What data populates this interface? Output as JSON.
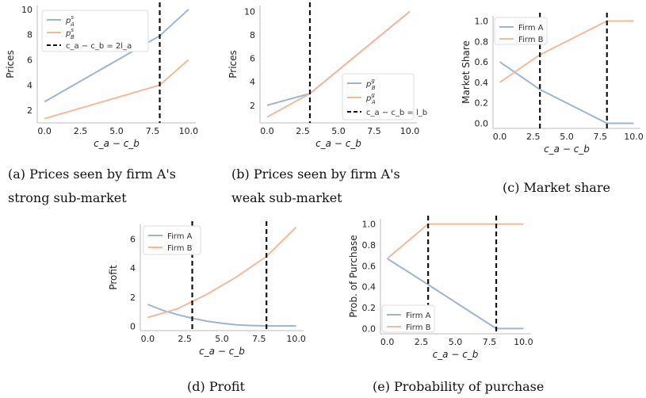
{
  "colors": {
    "firm_a": "#9db4d3",
    "firm_b": "#f2b99b",
    "threshold": "#111111"
  },
  "captions": {
    "a_line1": "(a) Prices seen by firm A's",
    "a_line2": "strong sub-market",
    "b_line1": "(b) Prices seen by firm A's",
    "b_line2": "weak sub-market",
    "c": "(c) Market share",
    "d": "(d) Profit",
    "e": "(e) Probability of purchase"
  },
  "chart_data": [
    {
      "type": "line",
      "panel": "a",
      "xlabel": "c_a − c_b",
      "ylabel": "Prices",
      "xlim": [
        -0.5,
        10.5
      ],
      "ylim": [
        1.0,
        10.3
      ],
      "xticks": [
        "0.0",
        "2.5",
        "5.0",
        "7.5",
        "10.0"
      ],
      "yticks": [
        "2",
        "4",
        "6",
        "8",
        "10"
      ],
      "legend_position": "top-left",
      "series": [
        {
          "name": "p^s_A",
          "color": "#9db4d3",
          "x": [
            0,
            8,
            10
          ],
          "y": [
            2.67,
            7.9,
            10
          ]
        },
        {
          "name": "p^s_B",
          "color": "#f2b99b",
          "x": [
            0,
            8,
            10
          ],
          "y": [
            1.33,
            4.0,
            6.0
          ]
        }
      ],
      "vlines": [
        {
          "name": "c_a − c_b = 2l_a",
          "x": 8
        }
      ]
    },
    {
      "type": "line",
      "panel": "b",
      "xlabel": "c_a − c_b",
      "ylabel": "Prices",
      "xlim": [
        -0.5,
        10.5
      ],
      "ylim": [
        0.5,
        10.5
      ],
      "xticks": [
        "0.0",
        "2.5",
        "5.0",
        "7.5",
        "10.0"
      ],
      "yticks": [
        "2",
        "4",
        "6",
        "8",
        "10"
      ],
      "legend_position": "bottom-right",
      "series": [
        {
          "name": "p^g_B",
          "color": "#9db4d3",
          "x": [
            0,
            3,
            10
          ],
          "y": [
            2.0,
            3.0,
            10.0
          ]
        },
        {
          "name": "p^g_A",
          "color": "#f2b99b",
          "x": [
            0,
            3,
            10
          ],
          "y": [
            1.0,
            3.0,
            10.0
          ]
        }
      ],
      "vlines": [
        {
          "name": "c_a − c_b = l_b",
          "x": 3
        }
      ]
    },
    {
      "type": "line",
      "panel": "c",
      "xlabel": "c_a − c_b",
      "ylabel": "Market Share",
      "xlim": [
        -0.5,
        10.5
      ],
      "ylim": [
        -0.05,
        1.05
      ],
      "xticks": [
        "0.0",
        "2.5",
        "5.0",
        "7.5",
        "10.0"
      ],
      "yticks": [
        "0.0",
        "0.2",
        "0.4",
        "0.6",
        "0.8",
        "1.0"
      ],
      "legend_position": "top-left",
      "series": [
        {
          "name": "Firm A",
          "color": "#9db4d3",
          "x": [
            0,
            3,
            8,
            10
          ],
          "y": [
            0.6,
            0.33,
            0.0,
            0.0
          ]
        },
        {
          "name": "Firm B",
          "color": "#f2b99b",
          "x": [
            0,
            3,
            8,
            10
          ],
          "y": [
            0.4,
            0.67,
            1.0,
            1.0
          ]
        }
      ],
      "vlines": [
        {
          "x": 3
        },
        {
          "x": 8
        }
      ]
    },
    {
      "type": "line",
      "panel": "d",
      "xlabel": "c_a − c_b",
      "ylabel": "Profit",
      "xlim": [
        -0.5,
        10.5
      ],
      "ylim": [
        -0.3,
        7.0
      ],
      "xticks": [
        "0.0",
        "2.5",
        "5.0",
        "7.5",
        "10.0"
      ],
      "yticks": [
        "0",
        "2",
        "4",
        "6"
      ],
      "legend_position": "top-left",
      "series": [
        {
          "name": "Firm A",
          "color": "#9db4d3",
          "x": [
            0,
            1,
            2,
            3,
            4,
            5,
            6,
            7,
            8,
            9,
            10
          ],
          "y": [
            1.5,
            1.1,
            0.8,
            0.55,
            0.35,
            0.2,
            0.1,
            0.05,
            0.02,
            0.02,
            0.02
          ]
        },
        {
          "name": "Firm B",
          "color": "#f2b99b",
          "x": [
            0,
            1,
            2,
            3,
            4,
            5,
            6,
            7,
            8,
            9,
            10
          ],
          "y": [
            0.6,
            0.9,
            1.2,
            1.7,
            2.2,
            2.8,
            3.4,
            4.1,
            4.8,
            5.8,
            6.8
          ]
        }
      ],
      "vlines": [
        {
          "x": 3
        },
        {
          "x": 8
        }
      ]
    },
    {
      "type": "line",
      "panel": "e",
      "xlabel": "c_a − c_b",
      "ylabel": "Prob. of Purchase",
      "xlim": [
        -0.5,
        10.5
      ],
      "ylim": [
        -0.05,
        1.05
      ],
      "xticks": [
        "0.0",
        "2.5",
        "5.0",
        "7.5",
        "10.0"
      ],
      "yticks": [
        "0.0",
        "0.2",
        "0.4",
        "0.6",
        "0.8",
        "1.0"
      ],
      "legend_position": "bottom-left",
      "series": [
        {
          "name": "Firm A",
          "color": "#9db4d3",
          "x": [
            0,
            3,
            8,
            10
          ],
          "y": [
            0.67,
            0.42,
            0.0,
            0.0
          ]
        },
        {
          "name": "Firm B",
          "color": "#f2b99b",
          "x": [
            0,
            3,
            10
          ],
          "y": [
            0.67,
            1.0,
            1.0
          ]
        }
      ],
      "vlines": [
        {
          "x": 3
        },
        {
          "x": 8
        }
      ]
    }
  ]
}
